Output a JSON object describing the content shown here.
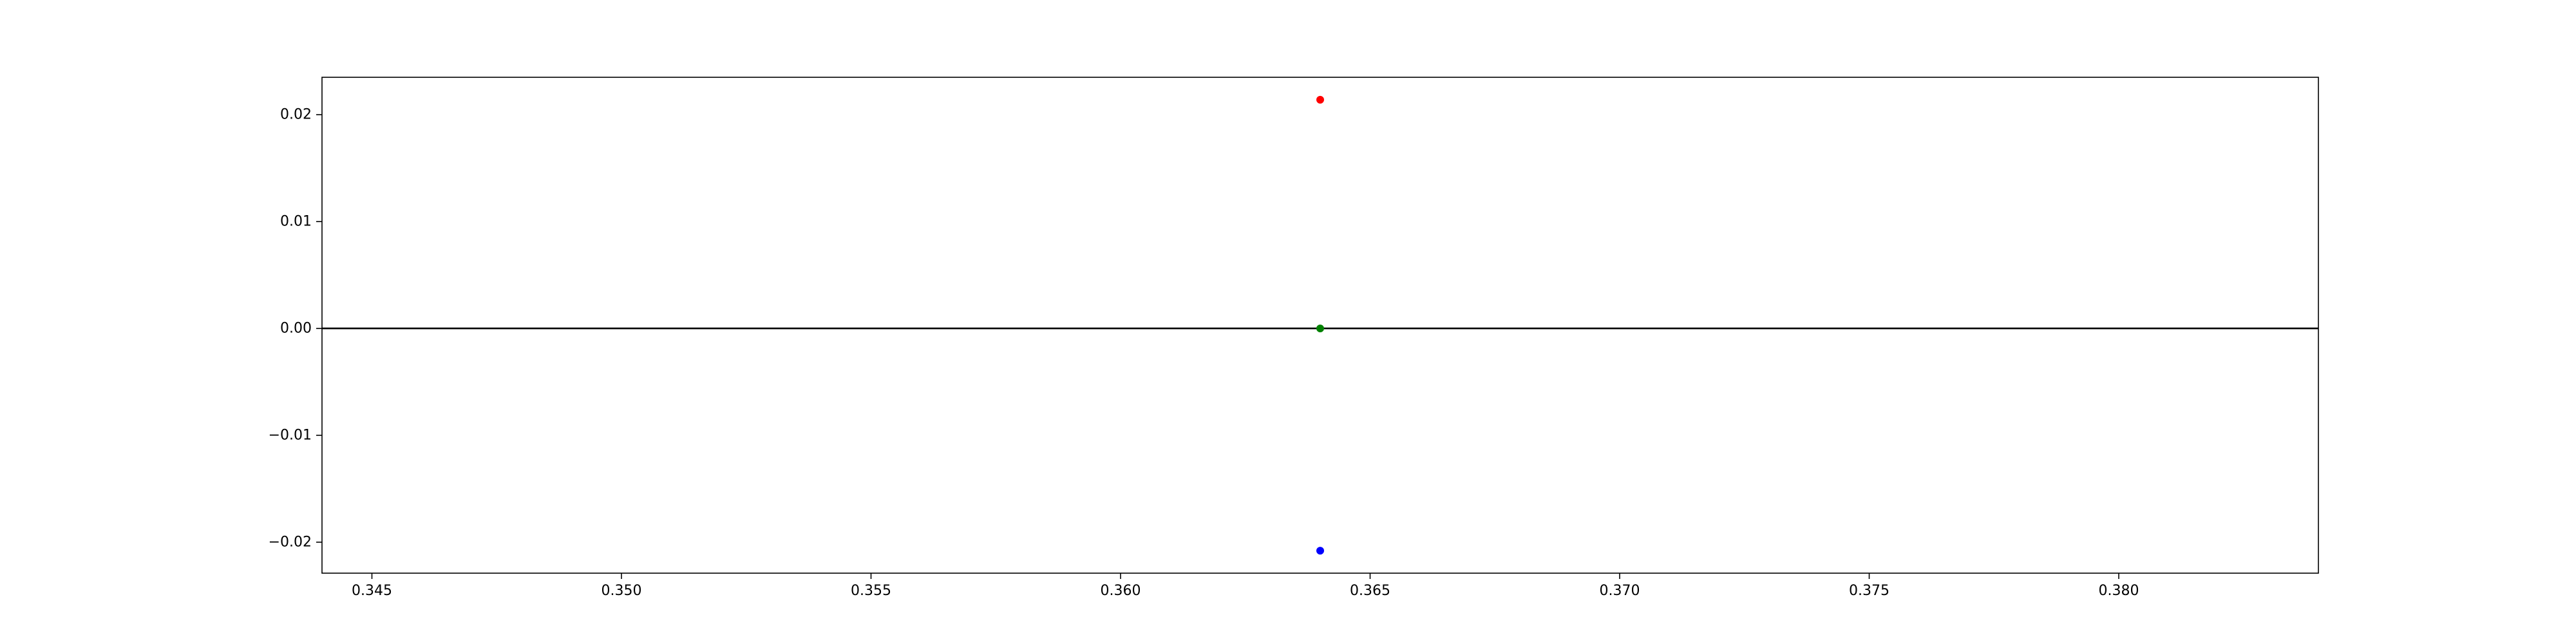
{
  "chart_data": {
    "type": "scatter",
    "title": "",
    "xlabel": "",
    "ylabel": "",
    "xlim": [
      0.344,
      0.384
    ],
    "ylim": [
      -0.0229,
      0.0235
    ],
    "x_ticks": [
      0.345,
      0.35,
      0.355,
      0.36,
      0.365,
      0.37,
      0.375,
      0.38
    ],
    "x_tick_labels": [
      "0.345",
      "0.350",
      "0.355",
      "0.360",
      "0.365",
      "0.370",
      "0.375",
      "0.380"
    ],
    "y_ticks": [
      0.02,
      0.01,
      0.0,
      -0.01,
      -0.02
    ],
    "y_tick_labels": [
      "0.02",
      "0.01",
      "0.00",
      "−0.01",
      "−0.02"
    ],
    "grid": false,
    "horizontal_lines": [
      {
        "y": 0.0,
        "color": "#000000"
      }
    ],
    "points": [
      {
        "x": 0.364,
        "y": 0.0214,
        "color": "#ff0000"
      },
      {
        "x": 0.364,
        "y": 0.0,
        "color": "#008000"
      },
      {
        "x": 0.364,
        "y": -0.0208,
        "color": "#0000ff"
      }
    ]
  }
}
